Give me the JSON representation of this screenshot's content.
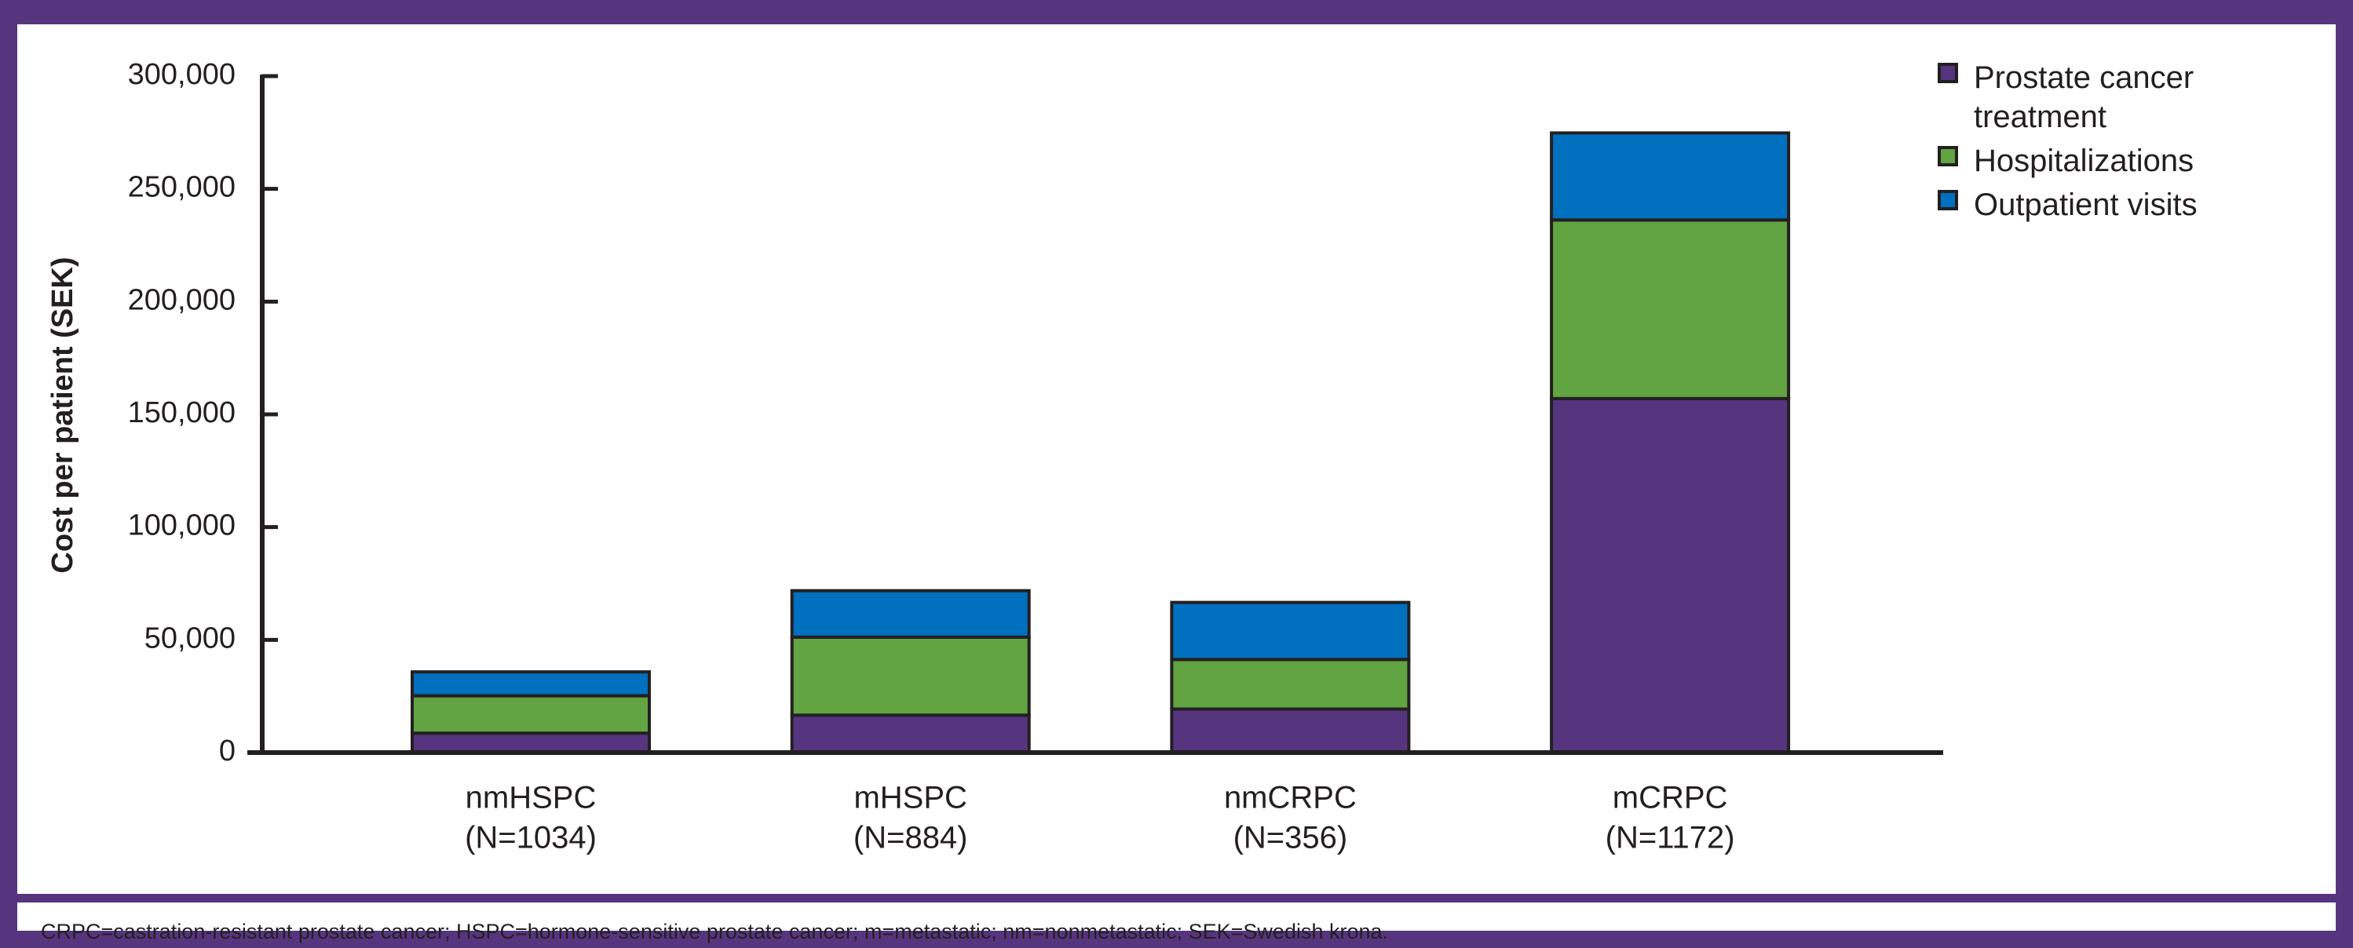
{
  "chart_data": {
    "type": "stacked-bar",
    "y_label": "Cost per patient (SEK)",
    "categories": [
      [
        "nmHSPC",
        "(N=1034)"
      ],
      [
        "mHSPC",
        "(N=884)"
      ],
      [
        "nmCRPC",
        "(N=356)"
      ],
      [
        "mCRPC",
        "(N=1172)"
      ]
    ],
    "series": [
      {
        "name": "Prostate cancer treatment",
        "color": "#56357f",
        "values": [
          8600,
          16600,
          19300,
          157000
        ]
      },
      {
        "name": "Hospitalizations",
        "color": "#62a342",
        "values": [
          16600,
          34600,
          22000,
          79200
        ]
      },
      {
        "name": "Outpatient visits",
        "color": "#0070bf",
        "values": [
          10600,
          20600,
          25300,
          38600
        ]
      }
    ],
    "ylim": [
      0,
      300000
    ],
    "yticks": [
      0,
      {
        "value": 50000,
        "label": "50,000"
      },
      {
        "value": 100000,
        "label": "100,000"
      },
      {
        "value": 150000,
        "label": "150,000"
      },
      {
        "value": 200000,
        "label": "200,000"
      },
      {
        "value": 250000,
        "label": "250,000"
      },
      {
        "value": 300000,
        "label": "300,000"
      }
    ],
    "legend": "top-right",
    "footnote": "CRPC=castration-resistant prostate cancer; HSPC=hormone-sensitive prostate cancer; m=metastatic; nm=nonmetastatic; SEK=Swedish krona."
  }
}
